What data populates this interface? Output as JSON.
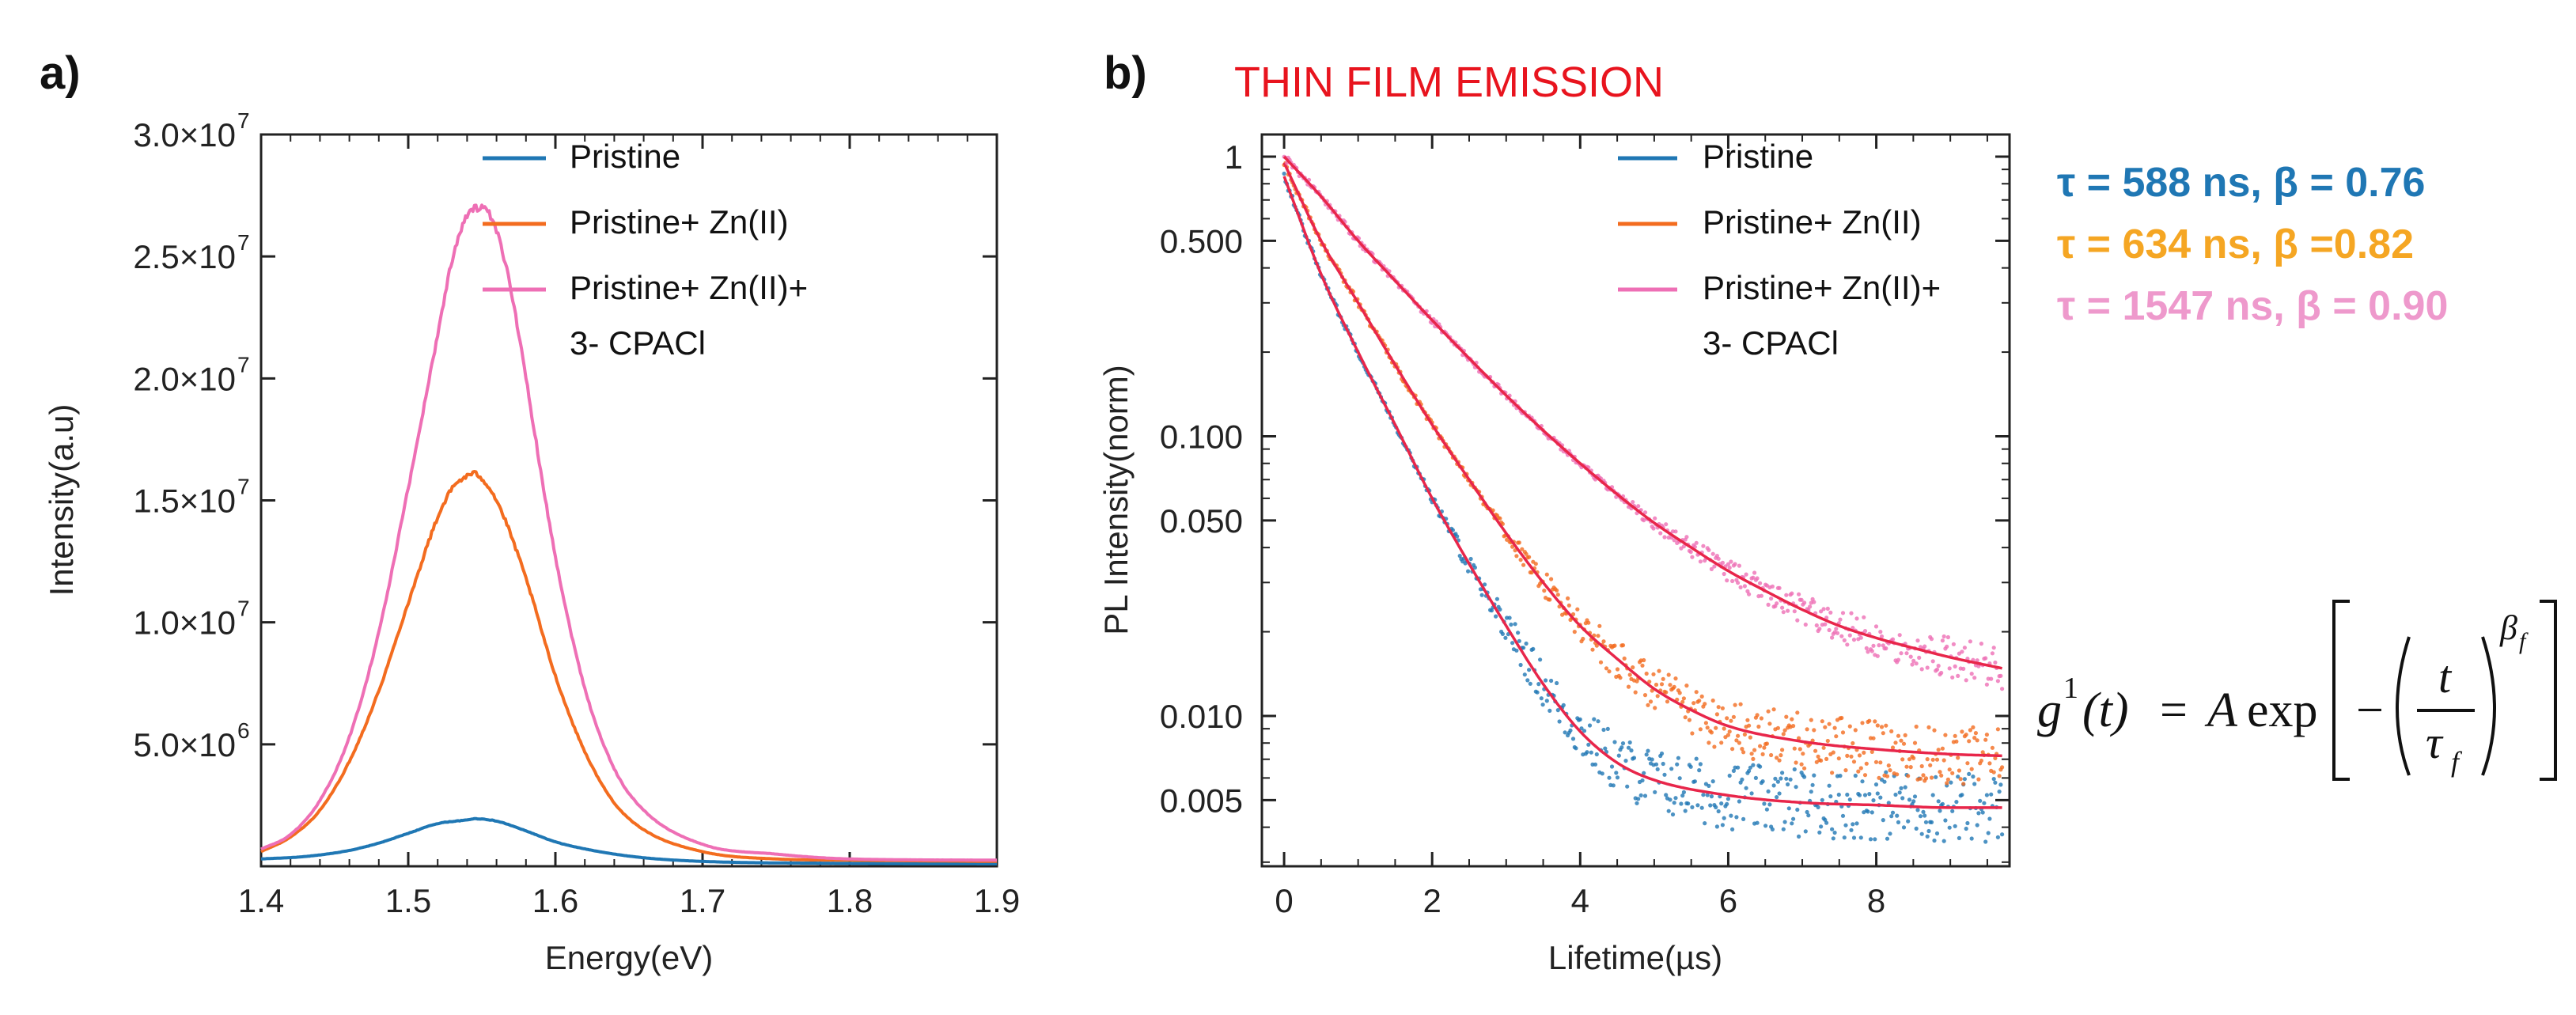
{
  "figure": {
    "panel_a_label": "a)",
    "panel_b_label": "b)",
    "panel_b_title": "THIN FILM EMISSION",
    "title_color": "#e8141e",
    "fit_results": [
      {
        "text": "τ = 588 ns, β = 0.76",
        "color": "#1f77b4"
      },
      {
        "text": "τ = 634 ns, β =0.82",
        "color": "#f5a623"
      },
      {
        "text": "τ = 1547 ns, β = 0.90",
        "color": "#ee99cc"
      }
    ],
    "equation": {
      "lhs": "g",
      "sup": "1",
      "arg": "(t)",
      "eq": "=",
      "A": "A",
      "exp": "exp",
      "minus": "−",
      "t": "t",
      "tau": "τ",
      "tau_sub": "f",
      "beta": "β",
      "beta_sub": "f"
    }
  },
  "chart_data": [
    {
      "id": "a",
      "type": "line",
      "xlabel": "Energy(eV)",
      "ylabel": "Intensity(a.u)",
      "xlim": [
        1.4,
        1.9
      ],
      "ylim": [
        0,
        30000000
      ],
      "x_ticks": [
        {
          "value": 1.4,
          "label": "1.4"
        },
        {
          "value": 1.5,
          "label": "1.5"
        },
        {
          "value": 1.6,
          "label": "1.6"
        },
        {
          "value": 1.7,
          "label": "1.7"
        },
        {
          "value": 1.8,
          "label": "1.8"
        },
        {
          "value": 1.9,
          "label": "1.9"
        }
      ],
      "y_ticks": [
        {
          "value": 5000000,
          "mantissa": "5.0×10",
          "exp": "6"
        },
        {
          "value": 10000000,
          "mantissa": "1.0×10",
          "exp": "7"
        },
        {
          "value": 15000000,
          "mantissa": "1.5×10",
          "exp": "7"
        },
        {
          "value": 20000000,
          "mantissa": "2.0×10",
          "exp": "7"
        },
        {
          "value": 25000000,
          "mantissa": "2.5×10",
          "exp": "7"
        },
        {
          "value": 30000000,
          "mantissa": "3.0×10",
          "exp": "7"
        }
      ],
      "legend_position": "top-right",
      "series": [
        {
          "name": "Pristine",
          "color": "#1f77b4",
          "x": [
            1.4,
            1.43,
            1.46,
            1.48,
            1.5,
            1.52,
            1.54,
            1.545,
            1.56,
            1.58,
            1.6,
            1.63,
            1.66,
            1.7,
            1.8,
            1.9
          ],
          "y": [
            300000,
            400000,
            650000,
            950000,
            1350000,
            1750000,
            1900000,
            1950000,
            1850000,
            1450000,
            1000000,
            600000,
            350000,
            200000,
            120000,
            100000
          ]
        },
        {
          "name": "Pristine+ Zn(II)",
          "color": "#f36c1f",
          "x": [
            1.4,
            1.42,
            1.44,
            1.46,
            1.48,
            1.5,
            1.52,
            1.53,
            1.54,
            1.545,
            1.55,
            1.56,
            1.58,
            1.6,
            1.62,
            1.64,
            1.66,
            1.7,
            1.75,
            1.8,
            1.9
          ],
          "y": [
            600000,
            1200000,
            2300000,
            4300000,
            7200000,
            10800000,
            14300000,
            15500000,
            16000000,
            16100000,
            15900000,
            15000000,
            11800000,
            7800000,
            4700000,
            2600000,
            1500000,
            600000,
            300000,
            250000,
            200000
          ]
        },
        {
          "name": "Pristine+ Zn(II)+\n3- CPACl",
          "color": "#ee6fb5",
          "x": [
            1.4,
            1.42,
            1.44,
            1.46,
            1.48,
            1.5,
            1.52,
            1.53,
            1.54,
            1.55,
            1.56,
            1.57,
            1.58,
            1.6,
            1.62,
            1.64,
            1.66,
            1.7,
            1.75,
            1.8,
            1.9
          ],
          "y": [
            700000,
            1300000,
            2700000,
            5300000,
            9600000,
            15500000,
            21800000,
            24900000,
            26700000,
            27000000,
            26000000,
            23600000,
            20000000,
            12700000,
            7300000,
            4000000,
            2300000,
            900000,
            500000,
            300000,
            250000
          ]
        }
      ]
    },
    {
      "id": "b",
      "type": "scatter",
      "title": "THIN FILM EMISSION",
      "xlabel": "Lifetime(µs)",
      "ylabel": "PL Intensity(norm)",
      "xlim": [
        -0.3,
        9.8
      ],
      "ylim": [
        0.0029,
        1.2
      ],
      "y_scale": "log",
      "x_ticks": [
        {
          "value": 0,
          "label": "0"
        },
        {
          "value": 2,
          "label": "2"
        },
        {
          "value": 4,
          "label": "4"
        },
        {
          "value": 6,
          "label": "6"
        },
        {
          "value": 8,
          "label": "8"
        }
      ],
      "y_ticks": [
        {
          "value": 1,
          "label": "1"
        },
        {
          "value": 0.5,
          "label": "0.500"
        },
        {
          "value": 0.1,
          "label": "0.100"
        },
        {
          "value": 0.05,
          "label": "0.050"
        },
        {
          "value": 0.01,
          "label": "0.010"
        },
        {
          "value": 0.005,
          "label": "0.005"
        }
      ],
      "legend_position": "top-right",
      "fit_color": "#e8264a",
      "series": [
        {
          "name": "Pristine",
          "color": "#1f77b4",
          "x": [
            0,
            0.5,
            1,
            1.5,
            2,
            2.5,
            3,
            3.5,
            4,
            4.5,
            5,
            6,
            7,
            8,
            9,
            9.7
          ],
          "y": [
            0.85,
            0.38,
            0.2,
            0.11,
            0.06,
            0.035,
            0.021,
            0.013,
            0.0088,
            0.0068,
            0.0059,
            0.0052,
            0.0049,
            0.0048,
            0.0047,
            0.0047
          ]
        },
        {
          "name": "Pristine+ Zn(II)",
          "color": "#f36c1f",
          "x": [
            0,
            0.5,
            1,
            1.5,
            2,
            2.5,
            3,
            3.5,
            4,
            4.5,
            5,
            5.5,
            6,
            7,
            8,
            9,
            9.7
          ],
          "y": [
            0.95,
            0.5,
            0.3,
            0.18,
            0.11,
            0.07,
            0.045,
            0.03,
            0.021,
            0.016,
            0.0125,
            0.0105,
            0.0092,
            0.0081,
            0.0076,
            0.0073,
            0.0072
          ]
        },
        {
          "name": "Pristine+ Zn(II)+\n3- CPACl",
          "color": "#ee6fb5",
          "x": [
            0,
            0.5,
            1,
            1.5,
            2,
            2.5,
            3,
            3.5,
            4,
            4.5,
            5,
            5.5,
            6,
            6.5,
            7,
            7.5,
            8,
            8.5,
            9,
            9.7
          ],
          "y": [
            1.0,
            0.72,
            0.5,
            0.36,
            0.26,
            0.19,
            0.14,
            0.105,
            0.08,
            0.062,
            0.049,
            0.04,
            0.033,
            0.028,
            0.024,
            0.021,
            0.019,
            0.0175,
            0.0162,
            0.0148
          ]
        }
      ]
    }
  ]
}
